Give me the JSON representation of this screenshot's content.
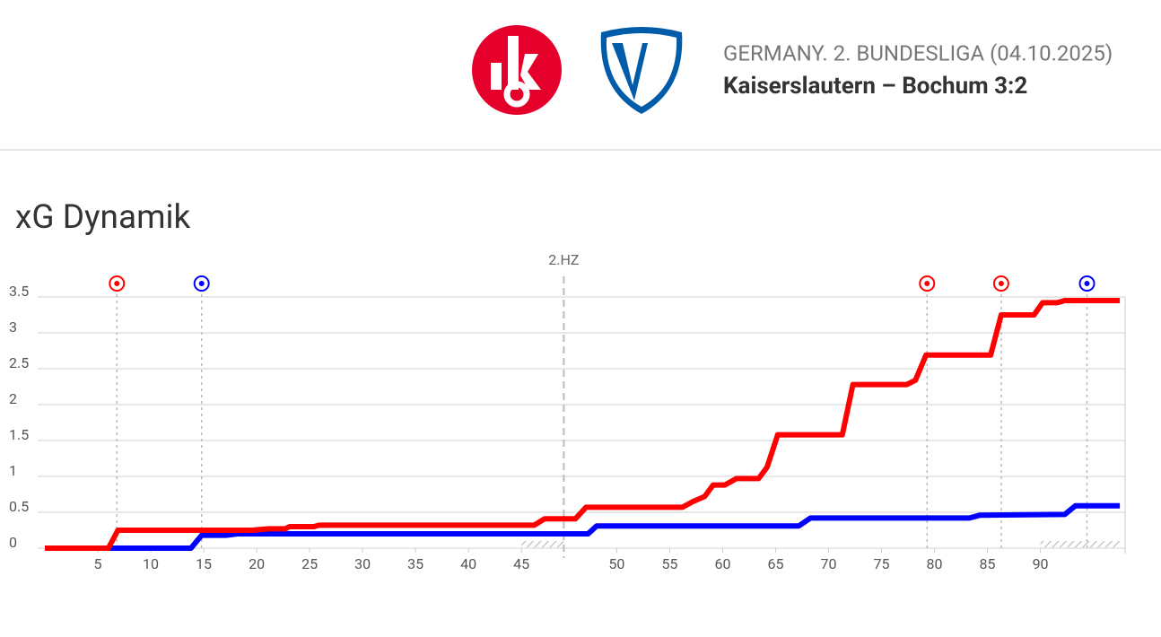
{
  "header": {
    "league": "GERMANY. 2. BUNDESLIGA (04.10.2025)",
    "match": "Kaiserslautern – Bochum 3:2"
  },
  "chart_data": {
    "type": "line",
    "title": "xG Dynamik",
    "xlim": [
      0,
      102
    ],
    "ylim": [
      0,
      3.5
    ],
    "xticks": [
      5,
      10,
      15,
      20,
      25,
      30,
      35,
      40,
      45,
      {
        "value": 54,
        "label": "50"
      },
      {
        "value": 59,
        "label": "55"
      },
      {
        "value": 64,
        "label": "60"
      },
      {
        "value": 69,
        "label": "65"
      },
      {
        "value": 74,
        "label": "70"
      },
      {
        "value": 79,
        "label": "75"
      },
      {
        "value": 84,
        "label": "80"
      },
      {
        "value": 89,
        "label": "85"
      },
      {
        "value": 94,
        "label": "90"
      }
    ],
    "yticks": [
      0,
      0.5,
      1,
      1.5,
      2,
      2.5,
      3,
      3.5
    ],
    "grid": true,
    "half_time": {
      "x": 49,
      "label": "2.HZ"
    },
    "stoppage_bands": [
      [
        45,
        49
      ],
      [
        94,
        101.5
      ]
    ],
    "series": [
      {
        "color": "#ff0000",
        "x": [
          0,
          6.0,
          6.9,
          19.5,
          21.2,
          22.7,
          23.1,
          25.4,
          25.9,
          46.2,
          47.2,
          50.1,
          51.1,
          60.2,
          61.2,
          62.3,
          63.1,
          64.2,
          65.3,
          67.4,
          68.2,
          69.2,
          75.3,
          76.3,
          81.4,
          82.2,
          83.2,
          89.3,
          90.3,
          93.4,
          94.2,
          95.6,
          96.3,
          101.5
        ],
        "values": [
          0,
          0,
          0.25,
          0.25,
          0.27,
          0.27,
          0.3,
          0.3,
          0.32,
          0.32,
          0.41,
          0.41,
          0.57,
          0.57,
          0.65,
          0.72,
          0.88,
          0.88,
          0.97,
          0.97,
          1.13,
          1.58,
          1.58,
          2.28,
          2.28,
          2.34,
          2.69,
          2.69,
          3.25,
          3.25,
          3.42,
          3.42,
          3.45,
          3.45
        ]
      },
      {
        "color": "#0000ff",
        "x": [
          0,
          13.8,
          14.8,
          17.1,
          18.2,
          51.3,
          52.1,
          71.2,
          72.3,
          87.3,
          88.3,
          96.3,
          97.3,
          101.5
        ],
        "values": [
          0,
          0,
          0.18,
          0.18,
          0.2,
          0.2,
          0.31,
          0.31,
          0.42,
          0.42,
          0.46,
          0.47,
          0.59,
          0.59
        ]
      }
    ],
    "goals": {
      "x": [
        6.8,
        14.8,
        83.3,
        90.3,
        98.4
      ],
      "colors": [
        "#ff0000",
        "#0000ff",
        "#ff0000",
        "#ff0000",
        "#0000ff"
      ]
    }
  }
}
